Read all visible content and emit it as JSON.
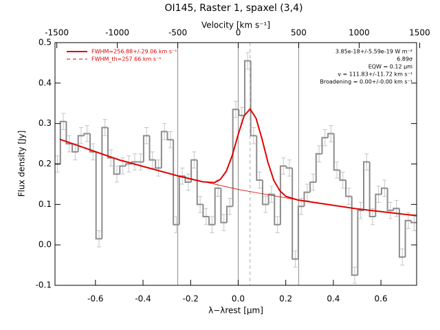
{
  "chart_data": {
    "type": "histogram",
    "title": "OI145, Raster 1, spaxel (3,4)",
    "xlabel": "λ−λrest [μm]",
    "ylabel": "Flux density [Jy]",
    "x2label": "Velocity [km s⁻¹]",
    "xlim": [
      -0.77,
      0.75
    ],
    "xticks": [
      -0.6,
      -0.4,
      -0.2,
      {
        "value": 0,
        "label": "0.0"
      },
      0.2,
      0.4,
      0.6
    ],
    "x2lim": [
      -1515,
      1475
    ],
    "x2ticks": [
      -1500,
      -1000,
      -500,
      0,
      500,
      1000,
      1500
    ],
    "ylim": [
      -0.1,
      0.5
    ],
    "yticks": [
      -0.1,
      {
        "value": 0,
        "label": "0.0"
      },
      0.1,
      0.2,
      0.3,
      0.4,
      0.5
    ],
    "color": "#8c8c8c",
    "error_color": "#c4c4c4",
    "bins": [
      -0.7725,
      -0.7475,
      -0.7225,
      -0.6975,
      -0.6725,
      -0.6475,
      -0.6225,
      -0.5975,
      -0.5725,
      -0.5475,
      -0.5225,
      -0.4975,
      -0.4725,
      -0.4475,
      -0.4225,
      -0.3975,
      -0.3725,
      -0.3475,
      -0.3225,
      -0.2975,
      -0.2725,
      -0.2475,
      -0.2225,
      -0.1975,
      -0.1725,
      -0.1475,
      -0.1225,
      -0.0975,
      -0.0725,
      -0.0475,
      -0.0225,
      0.0025,
      0.0275,
      0.0525,
      0.0775,
      0.1025,
      0.1275,
      0.1525,
      0.1775,
      0.2025,
      0.2275,
      0.2525,
      0.2775,
      0.3025,
      0.3275,
      0.3525,
      0.3775,
      0.4025,
      0.4275,
      0.4525,
      0.4775,
      0.5025,
      0.5275,
      0.5525,
      0.5775,
      0.6025,
      0.6275,
      0.6525,
      0.6775,
      0.7025,
      0.7275,
      0.7525
    ],
    "values": [
      0.2,
      0.305,
      0.25,
      0.23,
      0.27,
      0.275,
      0.23,
      0.015,
      0.29,
      0.215,
      0.175,
      0.195,
      0.2,
      0.205,
      0.205,
      0.27,
      0.21,
      0.19,
      0.28,
      0.26,
      0.05,
      0.17,
      0.155,
      0.21,
      0.1,
      0.07,
      0.05,
      0.14,
      0.055,
      0.095,
      0.335,
      0.32,
      0.455,
      0.27,
      0.16,
      0.1,
      0.125,
      0.05,
      0.195,
      0.19,
      -0.035,
      0.095,
      0.13,
      0.155,
      0.225,
      0.265,
      0.275,
      0.185,
      0.16,
      0.12,
      -0.075,
      0.085,
      0.205,
      0.07,
      0.125,
      0.14,
      0.085,
      0.09,
      -0.03,
      0.06,
      0.055
    ],
    "errors": [
      0.02,
      0.02,
      0.02,
      0.02,
      0.02,
      0.02,
      0.02,
      0.02,
      0.02,
      0.02,
      0.02,
      0.02,
      0.02,
      0.02,
      0.02,
      0.02,
      0.02,
      0.02,
      0.02,
      0.02,
      0.02,
      0.02,
      0.02,
      0.02,
      0.02,
      0.02,
      0.02,
      0.02,
      0.02,
      0.02,
      0.02,
      0.02,
      0.02,
      0.02,
      0.02,
      0.02,
      0.02,
      0.02,
      0.02,
      0.02,
      0.02,
      0.02,
      0.02,
      0.02,
      0.02,
      0.02,
      0.02,
      0.02,
      0.02,
      0.02,
      0.02,
      0.02,
      0.02,
      0.02,
      0.02,
      0.02,
      0.02,
      0.02,
      0.02,
      0.02,
      0.02
    ],
    "series": [
      {
        "name": "FWHM=256.88+/-29.06 km s⁻¹",
        "color": "#e00000",
        "style": "solid",
        "x": [
          -0.75,
          -0.5,
          -0.25,
          -0.15,
          -0.1,
          -0.075,
          -0.05,
          -0.025,
          0,
          0.025,
          0.05,
          0.075,
          0.1,
          0.125,
          0.15,
          0.175,
          0.2,
          0.25,
          0.5,
          0.75
        ],
        "values": [
          0.261,
          0.21,
          0.17,
          0.156,
          0.154,
          0.162,
          0.182,
          0.221,
          0.273,
          0.319,
          0.336,
          0.313,
          0.262,
          0.204,
          0.159,
          0.134,
          0.12,
          0.111,
          0.089,
          0.072
        ]
      },
      {
        "name": "FWHM_th=257.66 km s⁻¹",
        "color": "#e00000",
        "style": "dashed",
        "x": [
          -0.75,
          -0.5,
          -0.25,
          0,
          0.25,
          0.5,
          0.75
        ],
        "values": [
          0.261,
          0.21,
          0.17,
          0.137,
          0.111,
          0.089,
          0.072
        ]
      }
    ],
    "vlines": [
      -0.254,
      0,
      0.254
    ],
    "center_line": 0.05,
    "annotations": [
      "3.85e-18+/-5.59e-19 W m⁻²",
      "6.89σ",
      "EQW = 0.12 μm",
      "v = 111.83+/-11.72 km s⁻¹",
      "Broadening = 0.00+/-0.00 km s⁻¹"
    ]
  }
}
